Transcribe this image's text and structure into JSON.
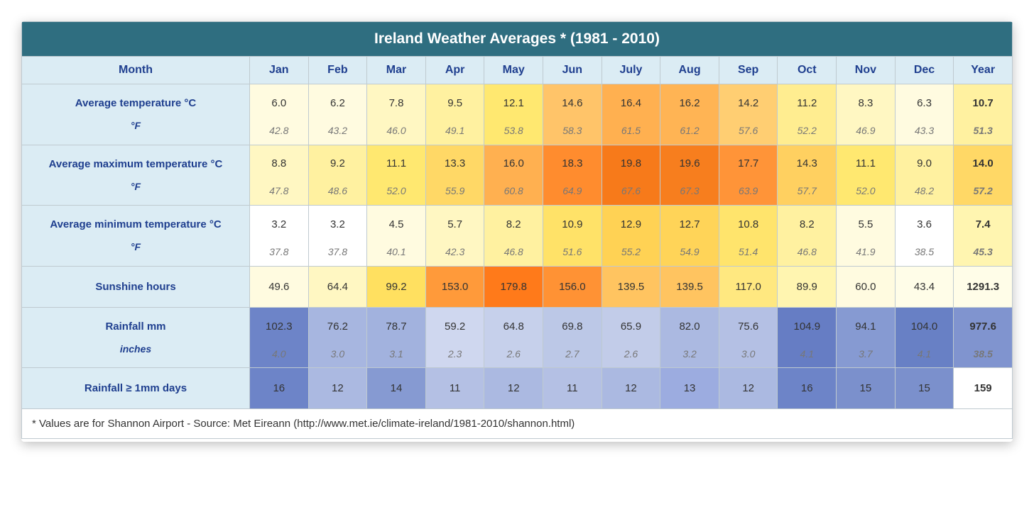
{
  "title": "Ireland Weather Averages * (1981 - 2010)",
  "footnote": "* Values are for Shannon Airport - Source: Met Eireann (http://www.met.ie/climate-ireland/1981-2010/shannon.html)",
  "columns": [
    "Month",
    "Jan",
    "Feb",
    "Mar",
    "Apr",
    "May",
    "Jun",
    "July",
    "Aug",
    "Sep",
    "Oct",
    "Nov",
    "Dec",
    "Year"
  ],
  "header_bg": "#2f6e80",
  "header_text": "#ffffff",
  "month_bg": "#dbecf4",
  "label_text": "#1f3f8f",
  "border_color": "#bfcad0",
  "rows": [
    {
      "label_top": "Average temperature °C",
      "label_bot": "°F",
      "dual": true,
      "colors": [
        "#fffbe0",
        "#fffbe0",
        "#fff7c2",
        "#fff1a0",
        "#ffe870",
        "#ffc469",
        "#ffb050",
        "#ffb454",
        "#ffce72",
        "#ffed90",
        "#fff7c2",
        "#fffbe0",
        "#fff1a0"
      ],
      "values_top": [
        "6.0",
        "6.2",
        "7.8",
        "9.5",
        "12.1",
        "14.6",
        "16.4",
        "16.2",
        "14.2",
        "11.2",
        "8.3",
        "6.3",
        "10.7"
      ],
      "values_bot": [
        "42.8",
        "43.2",
        "46.0",
        "49.1",
        "53.8",
        "58.3",
        "61.5",
        "61.2",
        "57.6",
        "52.2",
        "46.9",
        "43.3",
        "51.3"
      ]
    },
    {
      "label_top": "Average maximum temperature °C",
      "label_bot": "°F",
      "dual": true,
      "colors": [
        "#fff7c2",
        "#fff1a0",
        "#ffe870",
        "#ffd866",
        "#ffb050",
        "#ff8c2e",
        "#f77a1a",
        "#f77e1e",
        "#ff9438",
        "#ffd060",
        "#ffe870",
        "#fff1a0",
        "#ffd866"
      ],
      "values_top": [
        "8.8",
        "9.2",
        "11.1",
        "13.3",
        "16.0",
        "18.3",
        "19.8",
        "19.6",
        "17.7",
        "14.3",
        "11.1",
        "9.0",
        "14.0"
      ],
      "values_bot": [
        "47.8",
        "48.6",
        "52.0",
        "55.9",
        "60.8",
        "64.9",
        "67.6",
        "67.3",
        "63.9",
        "57.7",
        "52.0",
        "48.2",
        "57.2"
      ]
    },
    {
      "label_top": "Average minimum temperature °C",
      "label_bot": "°F",
      "dual": true,
      "colors": [
        "#ffffff",
        "#ffffff",
        "#fffbe0",
        "#fff7c2",
        "#fff1a0",
        "#ffe268",
        "#ffd254",
        "#ffd458",
        "#ffe46c",
        "#fff1a0",
        "#fffbe0",
        "#ffffff",
        "#fff5b0"
      ],
      "values_top": [
        "3.2",
        "3.2",
        "4.5",
        "5.7",
        "8.2",
        "10.9",
        "12.9",
        "12.7",
        "10.8",
        "8.2",
        "5.5",
        "3.6",
        "7.4"
      ],
      "values_bot": [
        "37.8",
        "37.8",
        "40.1",
        "42.3",
        "46.8",
        "51.6",
        "55.2",
        "54.9",
        "51.4",
        "46.8",
        "41.9",
        "38.5",
        "45.3"
      ]
    },
    {
      "label_top": "Sunshine hours",
      "label_bot": "",
      "dual": false,
      "colors": [
        "#fffbe0",
        "#fff7c2",
        "#ffe060",
        "#ff9a3a",
        "#ff7a1a",
        "#ff9234",
        "#ffc460",
        "#ffc460",
        "#ffe880",
        "#fff5b0",
        "#fffbe0",
        "#fffde8",
        "#fffde8"
      ],
      "values_top": [
        "49.6",
        "64.4",
        "99.2",
        "153.0",
        "179.8",
        "156.0",
        "139.5",
        "139.5",
        "117.0",
        "89.9",
        "60.0",
        "43.4",
        "1291.3"
      ],
      "values_bot": []
    },
    {
      "label_top": "Rainfall mm",
      "label_bot": "inches",
      "dual": true,
      "colors": [
        "#6d84c8",
        "#a7b6e0",
        "#a2b2de",
        "#cfd7ef",
        "#c6d0eb",
        "#bcc8e7",
        "#c2cce9",
        "#abb9e1",
        "#b4c0e4",
        "#667dc4",
        "#869ad2",
        "#6880c5",
        "#8094cf"
      ],
      "values_top": [
        "102.3",
        "76.2",
        "78.7",
        "59.2",
        "64.8",
        "69.8",
        "65.9",
        "82.0",
        "75.6",
        "104.9",
        "94.1",
        "104.0",
        "977.6"
      ],
      "values_bot": [
        "4.0",
        "3.0",
        "3.1",
        "2.3",
        "2.6",
        "2.7",
        "2.6",
        "3.2",
        "3.0",
        "4.1",
        "3.7",
        "4.1",
        "38.5"
      ]
    },
    {
      "label_top": "Rainfall ≥ 1mm days",
      "label_bot": "",
      "dual": false,
      "colors": [
        "#6d84c8",
        "#abb9e1",
        "#869ad2",
        "#b4c0e4",
        "#abb9e1",
        "#b4c0e4",
        "#abb9e1",
        "#9cace0",
        "#abb9e1",
        "#6d84c8",
        "#7b90cc",
        "#7b90cc",
        "#ffffff"
      ],
      "values_top": [
        "16",
        "12",
        "14",
        "11",
        "12",
        "11",
        "12",
        "13",
        "12",
        "16",
        "15",
        "15",
        "159"
      ],
      "values_bot": []
    }
  ]
}
